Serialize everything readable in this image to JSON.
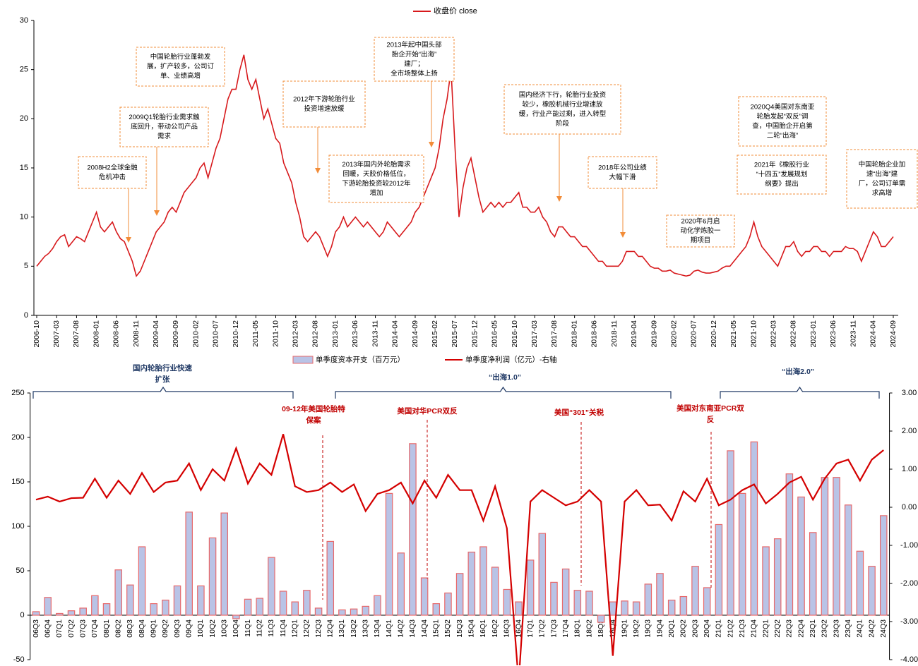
{
  "chart_data": [
    {
      "type": "line",
      "x": [
        "2006-10",
        "2006-11",
        "2006-12",
        "2007-01",
        "2007-02",
        "2007-03",
        "2007-04",
        "2007-05",
        "2007-06",
        "2007-07",
        "2007-08",
        "2007-09",
        "2007-10",
        "2007-11",
        "2007-12",
        "2008-01",
        "2008-02",
        "2008-03",
        "2008-04",
        "2008-05",
        "2008-06",
        "2008-07",
        "2008-08",
        "2008-09",
        "2008-10",
        "2008-11",
        "2008-12",
        "2009-01",
        "2009-02",
        "2009-03",
        "2009-04",
        "2009-05",
        "2009-06",
        "2009-07",
        "2009-08",
        "2009-09",
        "2009-10",
        "2009-11",
        "2009-12",
        "2010-01",
        "2010-02",
        "2010-03",
        "2010-04",
        "2010-05",
        "2010-06",
        "2010-07",
        "2010-08",
        "2010-09",
        "2010-10",
        "2010-11",
        "2010-12",
        "2011-01",
        "2011-02",
        "2011-03",
        "2011-04",
        "2011-05",
        "2011-06",
        "2011-07",
        "2011-08",
        "2011-09",
        "2011-10",
        "2011-11",
        "2011-12",
        "2012-01",
        "2012-02",
        "2012-03",
        "2012-04",
        "2012-05",
        "2012-06",
        "2012-07",
        "2012-08",
        "2012-09",
        "2012-10",
        "2012-11",
        "2012-12",
        "2013-01",
        "2013-02",
        "2013-03",
        "2013-04",
        "2013-05",
        "2013-06",
        "2013-07",
        "2013-08",
        "2013-09",
        "2013-10",
        "2013-11",
        "2013-12",
        "2014-01",
        "2014-02",
        "2014-03",
        "2014-04",
        "2014-05",
        "2014-06",
        "2014-07",
        "2014-08",
        "2014-09",
        "2014-10",
        "2014-11",
        "2014-12",
        "2015-01",
        "2015-02",
        "2015-03",
        "2015-04",
        "2015-05",
        "2015-06",
        "2015-07",
        "2015-08",
        "2015-09",
        "2015-10",
        "2015-11",
        "2015-12",
        "2016-01",
        "2016-02",
        "2016-03",
        "2016-04",
        "2016-05",
        "2016-06",
        "2016-07",
        "2016-08",
        "2016-09",
        "2016-10",
        "2016-11",
        "2016-12",
        "2017-01",
        "2017-02",
        "2017-03",
        "2017-04",
        "2017-05",
        "2017-06",
        "2017-07",
        "2017-08",
        "2017-09",
        "2017-10",
        "2017-11",
        "2017-12",
        "2018-01",
        "2018-02",
        "2018-03",
        "2018-04",
        "2018-05",
        "2018-06",
        "2018-07",
        "2018-08",
        "2018-09",
        "2018-10",
        "2018-11",
        "2018-12",
        "2019-01",
        "2019-02",
        "2019-03",
        "2019-04",
        "2019-05",
        "2019-06",
        "2019-07",
        "2019-08",
        "2019-09",
        "2019-10",
        "2019-11",
        "2019-12",
        "2020-01",
        "2020-02",
        "2020-03",
        "2020-04",
        "2020-05",
        "2020-06",
        "2020-07",
        "2020-08",
        "2020-09",
        "2020-10",
        "2020-11",
        "2020-12",
        "2021-01",
        "2021-02",
        "2021-03",
        "2021-04",
        "2021-05",
        "2021-06",
        "2021-07",
        "2021-08",
        "2021-09",
        "2021-10",
        "2021-11",
        "2021-12",
        "2022-01",
        "2022-02",
        "2022-03",
        "2022-04",
        "2022-05",
        "2022-06",
        "2022-07",
        "2022-08",
        "2022-09",
        "2022-10",
        "2022-11",
        "2022-12",
        "2023-01",
        "2023-02",
        "2023-03",
        "2023-04",
        "2023-05",
        "2023-06",
        "2023-07",
        "2023-08",
        "2023-09",
        "2023-10",
        "2023-11",
        "2023-12",
        "2024-01",
        "2024-02",
        "2024-03",
        "2024-04",
        "2024-05",
        "2024-06",
        "2024-07",
        "2024-08",
        "2024-09"
      ],
      "series": [
        {
          "name": "收盘价 close",
          "color": "#d7191c",
          "values": [
            5,
            5.5,
            6,
            6.3,
            6.8,
            7.5,
            8,
            8.2,
            7,
            7.5,
            8,
            7.8,
            7.5,
            8.5,
            9.5,
            10.5,
            9,
            8.5,
            9,
            9.5,
            8.5,
            7.8,
            7.5,
            6.5,
            5.5,
            4,
            4.5,
            5.5,
            6.5,
            7.5,
            8.5,
            9,
            9.5,
            10.5,
            11,
            10.5,
            11.5,
            12.5,
            13,
            13.5,
            14,
            15,
            15.5,
            14,
            15.5,
            17,
            18,
            20,
            22,
            23,
            23,
            25,
            26.5,
            24,
            23,
            24,
            22,
            20,
            21,
            19.5,
            18,
            17.5,
            15.5,
            14.5,
            13.5,
            11.5,
            10,
            8,
            7.5,
            8,
            8.5,
            8,
            7,
            6,
            7,
            8.5,
            9,
            10,
            9,
            9.5,
            10,
            9.5,
            9,
            9.5,
            9,
            8.5,
            8,
            8.5,
            9.5,
            9,
            8.5,
            8,
            8.5,
            9,
            9.5,
            10.5,
            11,
            12,
            13,
            14,
            15,
            17,
            20,
            22,
            25,
            17,
            10,
            13,
            15,
            16,
            14,
            12,
            10.5,
            11,
            11.5,
            11,
            11.5,
            11,
            11.5,
            11.5,
            12,
            12.5,
            11,
            11,
            10.5,
            10.5,
            11,
            10,
            9.5,
            8.5,
            8,
            9,
            9,
            8.5,
            8,
            8,
            7.5,
            7,
            7,
            6.5,
            6,
            5.5,
            5.5,
            5,
            5,
            5,
            5,
            5.5,
            6.5,
            6.5,
            6.5,
            6,
            6,
            5.5,
            5,
            4.8,
            4.8,
            4.5,
            4.5,
            4.6,
            4.3,
            4.2,
            4.1,
            4,
            4.1,
            4.5,
            4.6,
            4.4,
            4.3,
            4.3,
            4.4,
            4.5,
            4.8,
            5,
            5,
            5.5,
            6,
            6.5,
            7,
            8,
            9.5,
            8,
            7,
            6.5,
            6,
            5.5,
            5,
            6,
            7,
            7,
            7.5,
            6.5,
            6,
            6.5,
            6.5,
            7,
            7,
            6.5,
            6.5,
            6,
            6.5,
            6.5,
            6.5,
            7,
            6.8,
            6.8,
            6.5,
            5.5,
            6.5,
            7.5,
            8.5,
            8,
            7,
            7,
            7.5,
            8
          ]
        }
      ],
      "xticks": [
        "2006-10",
        "2007-03",
        "2007-08",
        "2008-01",
        "2008-06",
        "2008-11",
        "2009-04",
        "2009-09",
        "2010-02",
        "2010-07",
        "2010-12",
        "2011-05",
        "2011-10",
        "2012-03",
        "2012-08",
        "2013-01",
        "2013-06",
        "2013-11",
        "2014-04",
        "2014-09",
        "2015-02",
        "2015-07",
        "2015-12",
        "2016-05",
        "2016-10",
        "2017-03",
        "2017-08",
        "2018-01",
        "2018-06",
        "2018-11",
        "2019-04",
        "2019-09",
        "2020-02",
        "2020-07",
        "2020-12",
        "2021-05",
        "2021-10",
        "2022-03",
        "2022-08",
        "2023-01",
        "2023-06",
        "2023-11",
        "2024-04",
        "2024-09"
      ],
      "ylim": [
        0,
        30
      ],
      "yticks": [
        0,
        5,
        10,
        15,
        20,
        25,
        30
      ],
      "annotations": [
        {
          "lines": [
            "2008H2全球金融",
            "危机冲击"
          ]
        },
        {
          "lines": [
            "2009Q1轮胎行业需求触",
            "底回升，带动公司产品",
            "需求"
          ]
        },
        {
          "lines": [
            "中国轮胎行业蓬勃发",
            "展，扩产较多，公司订",
            "单、业绩高增"
          ]
        },
        {
          "lines": [
            "2012年下游轮胎行业",
            "投资增速放缓"
          ]
        },
        {
          "lines": [
            "2013年国内外轮胎需求",
            "回暖，天胶价格低位，",
            "下游轮胎投资较2012年",
            "增加"
          ]
        },
        {
          "lines": [
            "2013年起中国头部",
            "胎企开始“出海”",
            "建厂；",
            "全市场整体上扬"
          ]
        },
        {
          "lines": [
            "国内经济下行，轮胎行业投资",
            "较少，橡胶机械行业增速放",
            "缓，行业产能过剩，进入转型",
            "阶段"
          ]
        },
        {
          "lines": [
            "2018年公司业绩",
            "大幅下滑"
          ]
        },
        {
          "lines": [
            "2020年6月启",
            "动化学炼胶一",
            "期项目"
          ]
        },
        {
          "lines": [
            "2020Q4美国对东南亚",
            "轮胎发起“双反”调",
            "查，中国胎企开启第",
            "二轮“出海”"
          ]
        },
        {
          "lines": [
            "2021年《橡胶行业",
            "“十四五”发展规划",
            "纲要》提出"
          ]
        },
        {
          "lines": [
            "中国轮胎企业加",
            "速“出海”建",
            "厂，公司订单需",
            "求高增"
          ]
        }
      ]
    },
    {
      "type": "bar",
      "categories": [
        "06Q3",
        "06Q4",
        "07Q1",
        "07Q2",
        "07Q3",
        "07Q4",
        "08Q1",
        "08Q2",
        "08Q3",
        "08Q4",
        "09Q1",
        "09Q2",
        "09Q3",
        "09Q4",
        "10Q1",
        "10Q2",
        "10Q3",
        "10Q4",
        "11Q1",
        "11Q2",
        "11Q3",
        "11Q4",
        "12Q1",
        "12Q2",
        "12Q3",
        "12Q4",
        "13Q1",
        "13Q2",
        "13Q3",
        "13Q4",
        "14Q1",
        "14Q2",
        "14Q3",
        "14Q4",
        "15Q1",
        "15Q2",
        "15Q3",
        "15Q4",
        "16Q1",
        "16Q2",
        "16Q3",
        "16Q4",
        "17Q1",
        "17Q2",
        "17Q3",
        "17Q4",
        "18Q1",
        "18Q2",
        "18Q3",
        "18Q4",
        "19Q1",
        "19Q2",
        "19Q3",
        "19Q4",
        "20Q1",
        "20Q2",
        "20Q3",
        "20Q4",
        "21Q1",
        "21Q2",
        "21Q3",
        "21Q4",
        "22Q1",
        "22Q2",
        "22Q3",
        "22Q4",
        "23Q1",
        "23Q2",
        "23Q3",
        "23Q4",
        "24Q1",
        "24Q2",
        "24Q3"
      ],
      "series": [
        {
          "name": "单季度资本开支（百万元）",
          "type": "bar",
          "color": "#b9c3e6",
          "edge_color": "#e8696b",
          "values": [
            4,
            20,
            2,
            5,
            8,
            22,
            13,
            51,
            34,
            77,
            13,
            17,
            33,
            116,
            33,
            87,
            115,
            -4,
            18,
            19,
            65,
            27,
            15,
            28,
            8,
            83,
            6,
            7,
            10,
            22,
            137,
            70,
            193,
            42,
            13,
            25,
            47,
            71,
            77,
            54,
            29,
            15,
            62,
            92,
            37,
            52,
            28,
            27,
            -8,
            15,
            16,
            15,
            35,
            47,
            17,
            21,
            55,
            31,
            102,
            185,
            137,
            195,
            77,
            86,
            159,
            133,
            93,
            155,
            155,
            124,
            72,
            55,
            112
          ]
        },
        {
          "name": "单季度净利润（亿元）-右轴",
          "type": "line",
          "axis": "y2",
          "color": "#d40000",
          "values": [
            0.2,
            0.28,
            0.15,
            0.24,
            0.25,
            0.75,
            0.25,
            0.7,
            0.35,
            0.9,
            0.4,
            0.65,
            0.7,
            1.15,
            0.45,
            1.0,
            0.7,
            1.55,
            0.62,
            1.15,
            0.85,
            1.92,
            0.55,
            0.4,
            0.45,
            0.65,
            0.4,
            0.6,
            -0.1,
            0.35,
            0.45,
            0.65,
            0.1,
            0.7,
            0.25,
            0.85,
            0.45,
            0.45,
            -0.35,
            0.55,
            -0.55,
            -4.6,
            0.15,
            0.45,
            0.25,
            0.05,
            0.15,
            0.45,
            0.15,
            -3.9,
            0.15,
            0.45,
            0.05,
            0.07,
            -0.35,
            0.42,
            0.15,
            0.75,
            0.05,
            0.2,
            0.45,
            0.6,
            0.1,
            0.35,
            0.65,
            0.8,
            0.2,
            0.75,
            1.15,
            1.25,
            0.7,
            1.25,
            1.5
          ]
        }
      ],
      "ylim": [
        -50,
        250
      ],
      "yticks": [
        -50,
        0,
        50,
        100,
        150,
        200,
        250
      ],
      "y2lim": [
        -4,
        3
      ],
      "y2ticks": [
        {
          "value": -4,
          "label": "-4.00"
        },
        {
          "value": -3,
          "label": "-3.00"
        },
        {
          "value": -2,
          "label": "-2.00"
        },
        {
          "value": -1,
          "label": "-1.00"
        },
        {
          "value": 0,
          "label": "0.00"
        },
        {
          "value": 1,
          "label": "1.00"
        },
        {
          "value": 2,
          "label": "2.00"
        },
        {
          "value": 3,
          "label": "3.00"
        }
      ],
      "brackets": [
        {
          "lines": [
            "国内轮胎行业快速",
            "扩张"
          ]
        },
        {
          "lines": [
            "“出海1.0”"
          ]
        },
        {
          "lines": [
            "“出海2.0”"
          ]
        }
      ],
      "annotations": [
        {
          "lines": [
            "09-12年美国轮胎特",
            "保案"
          ]
        },
        {
          "lines": [
            "美国对华PCR双反"
          ]
        },
        {
          "lines": [
            "美国“301”关税"
          ]
        },
        {
          "lines": [
            "美国对东南亚PCR双",
            "反"
          ]
        }
      ]
    }
  ]
}
